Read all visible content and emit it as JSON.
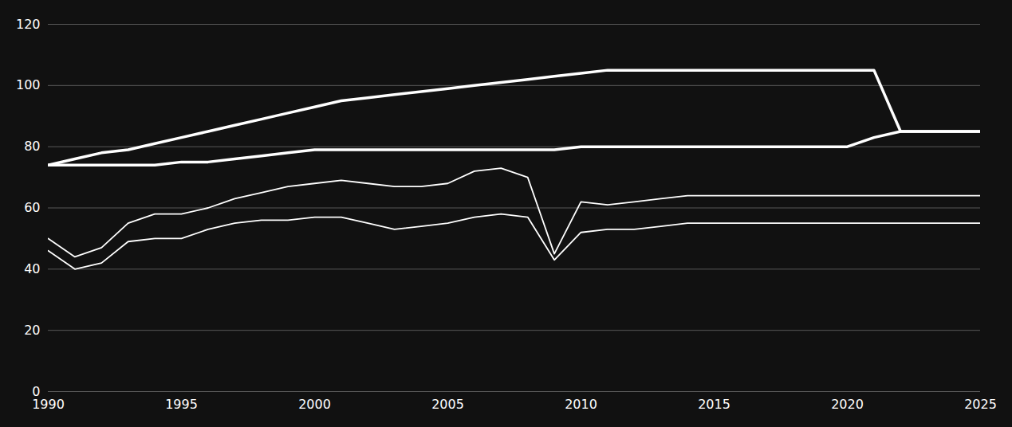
{
  "chart_data": {
    "type": "line",
    "x": [
      1990,
      1991,
      1992,
      1993,
      1994,
      1995,
      1996,
      1997,
      1998,
      1999,
      2000,
      2001,
      2002,
      2003,
      2004,
      2005,
      2006,
      2007,
      2008,
      2009,
      2010,
      2011,
      2012,
      2013,
      2014,
      2015,
      2016,
      2017,
      2018,
      2019,
      2020,
      2021,
      2022,
      2023,
      2024,
      2025
    ],
    "series": [
      {
        "color": "#ffffff",
        "values": [
          74,
          76,
          78,
          79,
          81,
          83,
          85,
          87,
          89,
          91,
          93,
          95,
          96,
          97,
          98,
          99,
          100,
          101,
          102,
          103,
          104,
          105,
          105,
          105,
          105,
          105,
          105,
          105,
          105,
          105,
          105,
          105,
          85,
          85,
          85,
          85
        ]
      },
      {
        "color": "#ffffff",
        "values": [
          74,
          74,
          74,
          74,
          74,
          75,
          75,
          76,
          77,
          78,
          79,
          79,
          79,
          79,
          79,
          79,
          79,
          79,
          79,
          79,
          80,
          80,
          80,
          80,
          80,
          80,
          80,
          80,
          80,
          80,
          80,
          83,
          85,
          85,
          85,
          85
        ]
      },
      {
        "color": "#ffffff",
        "values": [
          50,
          44,
          47,
          55,
          58,
          58,
          60,
          63,
          65,
          67,
          68,
          69,
          68,
          67,
          67,
          68,
          72,
          73,
          70,
          45,
          62,
          61,
          62,
          63,
          64,
          64,
          64,
          64,
          64,
          64,
          64,
          64,
          64,
          64,
          64,
          64
        ]
      },
      {
        "color": "#ffffff",
        "values": [
          46,
          40,
          42,
          49,
          50,
          50,
          53,
          55,
          56,
          56,
          57,
          57,
          55,
          53,
          54,
          55,
          57,
          58,
          57,
          43,
          52,
          53,
          53,
          54,
          55,
          55,
          55,
          55,
          55,
          55,
          55,
          55,
          55,
          55,
          55,
          55
        ]
      }
    ],
    "xlim": [
      1990,
      2025
    ],
    "xticks": [
      1990,
      1995,
      2000,
      2005,
      2010,
      2015,
      2020,
      2025
    ],
    "ylim": [
      0,
      120
    ],
    "yticks": [
      0,
      20,
      40,
      60,
      80,
      100,
      120
    ],
    "grid": "y"
  }
}
